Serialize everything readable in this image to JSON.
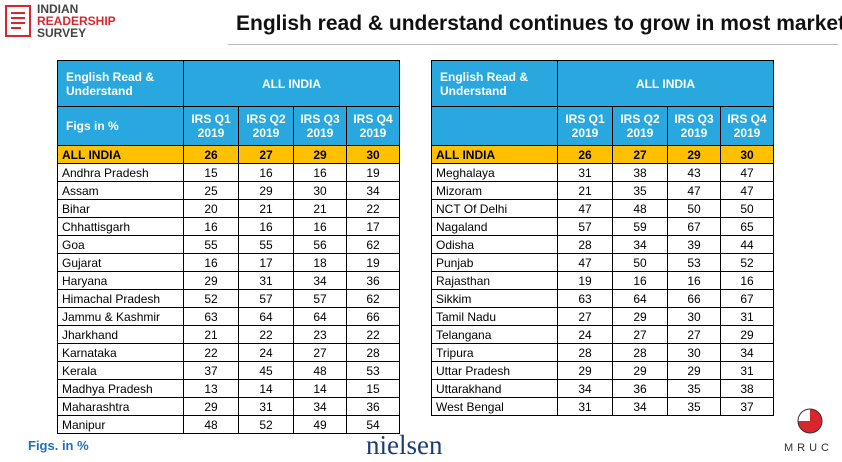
{
  "logo": {
    "lines": [
      "INDIAN",
      "READERSHIP",
      "SURVEY"
    ]
  },
  "title": "English read & understand continues to grow in most markets",
  "tables": [
    {
      "header_label": "English Read & Understand",
      "group": "ALL INDIA",
      "figs": "Figs in %",
      "columns": [
        "IRS Q1 2019",
        "IRS Q2 2019",
        "IRS Q3 2019",
        "IRS Q4 2019"
      ],
      "rows": [
        [
          "ALL INDIA",
          26,
          27,
          29,
          30
        ],
        [
          "Andhra Pradesh",
          15,
          16,
          16,
          19
        ],
        [
          "Assam",
          25,
          29,
          30,
          34
        ],
        [
          "Bihar",
          20,
          21,
          21,
          22
        ],
        [
          "Chhattisgarh",
          16,
          16,
          16,
          17
        ],
        [
          "Goa",
          55,
          55,
          56,
          62
        ],
        [
          "Gujarat",
          16,
          17,
          18,
          19
        ],
        [
          "Haryana",
          29,
          31,
          34,
          36
        ],
        [
          "Himachal Pradesh",
          52,
          57,
          57,
          62
        ],
        [
          "Jammu & Kashmir",
          63,
          64,
          64,
          66
        ],
        [
          "Jharkhand",
          21,
          22,
          23,
          22
        ],
        [
          "Karnataka",
          22,
          24,
          27,
          28
        ],
        [
          "Kerala",
          37,
          45,
          48,
          53
        ],
        [
          "Madhya Pradesh",
          13,
          14,
          14,
          15
        ],
        [
          "Maharashtra",
          29,
          31,
          34,
          36
        ],
        [
          "Manipur",
          48,
          52,
          49,
          54
        ]
      ]
    },
    {
      "header_label": "English Read & Understand",
      "group": "ALL INDIA",
      "columns": [
        "IRS Q1 2019",
        "IRS Q2 2019",
        "IRS Q3 2019",
        "IRS Q4 2019"
      ],
      "rows": [
        [
          "ALL INDIA",
          26,
          27,
          29,
          30
        ],
        [
          "Meghalaya",
          31,
          38,
          43,
          47
        ],
        [
          "Mizoram",
          21,
          35,
          47,
          47
        ],
        [
          "NCT Of Delhi",
          47,
          48,
          50,
          50
        ],
        [
          "Nagaland",
          57,
          59,
          67,
          65
        ],
        [
          "Odisha",
          28,
          34,
          39,
          44
        ],
        [
          "Punjab",
          47,
          50,
          53,
          52
        ],
        [
          "Rajasthan",
          19,
          16,
          16,
          16
        ],
        [
          "Sikkim",
          63,
          64,
          66,
          67
        ],
        [
          "Tamil Nadu",
          27,
          29,
          30,
          31
        ],
        [
          "Telangana",
          24,
          27,
          27,
          29
        ],
        [
          "Tripura",
          28,
          28,
          30,
          34
        ],
        [
          "Uttar Pradesh",
          29,
          29,
          29,
          31
        ],
        [
          "Uttarakhand",
          34,
          36,
          35,
          38
        ],
        [
          "West Bengal",
          31,
          34,
          35,
          37
        ]
      ]
    }
  ],
  "footer": {
    "note": "Figs. in %",
    "brand": "nielsen",
    "mruc": "MRUC"
  }
}
